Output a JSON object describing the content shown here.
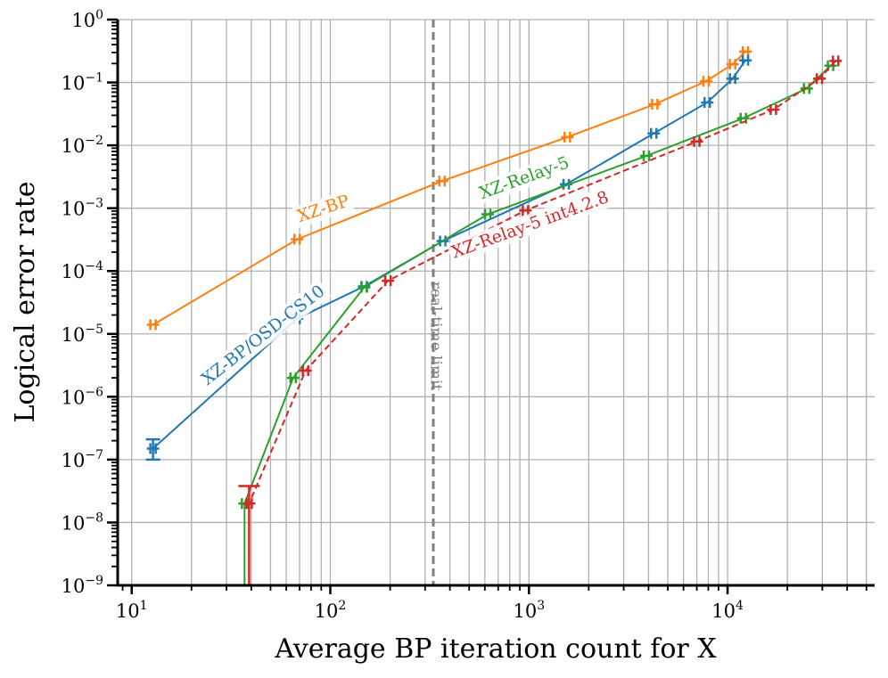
{
  "chart_data": {
    "type": "line",
    "title": "",
    "xlabel": "Average BP iteration count for X",
    "ylabel": "Logical error rate",
    "xscale": "log",
    "yscale": "log",
    "xlim": [
      8.5,
      55000
    ],
    "ylim": [
      1e-09,
      1
    ],
    "grid": true,
    "x_ticks": [
      {
        "base": "10",
        "exp": "1",
        "value": 10
      },
      {
        "base": "10",
        "exp": "2",
        "value": 100
      },
      {
        "base": "10",
        "exp": "3",
        "value": 1000
      },
      {
        "base": "10",
        "exp": "4",
        "value": 10000
      }
    ],
    "y_ticks": [
      {
        "base": "10",
        "exp": "0",
        "value": 1
      },
      {
        "base": "10",
        "exp": "−1",
        "value": 0.1
      },
      {
        "base": "10",
        "exp": "−2",
        "value": 0.01
      },
      {
        "base": "10",
        "exp": "−3",
        "value": 0.001
      },
      {
        "base": "10",
        "exp": "−4",
        "value": 0.0001
      },
      {
        "base": "10",
        "exp": "−5",
        "value": 1e-05
      },
      {
        "base": "10",
        "exp": "−6",
        "value": 1e-06
      },
      {
        "base": "10",
        "exp": "−7",
        "value": 1e-07
      },
      {
        "base": "10",
        "exp": "−8",
        "value": 1e-08
      },
      {
        "base": "10",
        "exp": "−9",
        "value": 1e-09
      }
    ],
    "vline": {
      "x": 330,
      "label": "real-time limit",
      "color": "#808080"
    },
    "series": [
      {
        "name": "XZ-BP",
        "color": "#ff7f0e",
        "dashed": false,
        "x": [
          12.8,
          68,
          365,
          1560,
          4300,
          7800,
          10600,
          12300
        ],
        "y": [
          1.4e-05,
          0.00032,
          0.0027,
          0.0135,
          0.045,
          0.105,
          0.195,
          0.31
        ]
      },
      {
        "name": "XZ-BP/OSD-CS10",
        "color": "#1f77b4",
        "dashed": false,
        "x": [
          12.8,
          68,
          148,
          368,
          1540,
          4250,
          7900,
          10600,
          12300
        ],
        "y": [
          1.5e-07,
          1.75e-05,
          5.7e-05,
          0.0003,
          0.0024,
          0.0155,
          0.048,
          0.115,
          0.225
        ],
        "err_lo": [
          1e-07,
          null,
          null,
          null,
          null,
          null,
          null,
          null,
          null
        ],
        "err_hi": [
          2.1e-07,
          null,
          null,
          null,
          null,
          null,
          null,
          null,
          null
        ]
      },
      {
        "name": "XZ-Relay-5",
        "color": "#2ca02c",
        "dashed": false,
        "x": [
          37,
          37,
          65,
          148,
          620,
          3900,
          12000,
          25000,
          33000
        ],
        "y": [
          1e-09,
          2e-08,
          2e-06,
          5.5e-05,
          0.0008,
          0.0068,
          0.027,
          0.08,
          0.185
        ]
      },
      {
        "name": "XZ-Relay-5 int4.2.8",
        "color": "#d62728",
        "dashed": true,
        "x": [
          39,
          39,
          75,
          195,
          960,
          7000,
          17000,
          29000,
          35000
        ],
        "y": [
          1e-09,
          2e-08,
          2.6e-06,
          7e-05,
          0.00092,
          0.0115,
          0.037,
          0.115,
          0.22
        ]
      }
    ],
    "extra_error_bars": [
      {
        "color": "#d62728",
        "x": 39,
        "y_low": 1e-09,
        "y_high": 3.8e-08
      }
    ],
    "annotations": [
      {
        "text": "XZ-BP",
        "series": "XZ-BP",
        "color": "#ff7f0e",
        "x": 70,
        "y": 0.0006,
        "angle": 18
      },
      {
        "text": "XZ-BP/OSD-CS10",
        "series": "XZ-BP/OSD-CS10",
        "color": "#1f77b4",
        "x": 24,
        "y": 1.5e-06,
        "angle": 38
      },
      {
        "text": "XZ-Relay-5",
        "series": "XZ-Relay-5",
        "color": "#2ca02c",
        "x": 580,
        "y": 0.0014,
        "angle": 20
      },
      {
        "text": "XZ-Relay-5 int4.2.8",
        "series": "XZ-Relay-5 int4.2.8",
        "color": "#d62728",
        "x": 420,
        "y": 0.00016,
        "angle": 20
      }
    ]
  }
}
